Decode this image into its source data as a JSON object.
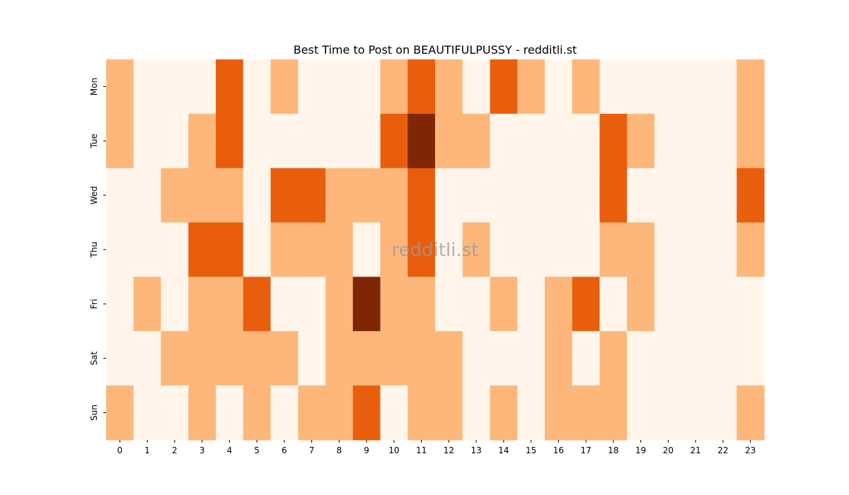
{
  "chart_data": {
    "type": "heatmap",
    "title": "Best Time to Post on BEAUTIFULPUSSY - redditli.st",
    "xlabel": "",
    "ylabel": "",
    "x_categories": [
      "0",
      "1",
      "2",
      "3",
      "4",
      "5",
      "6",
      "7",
      "8",
      "9",
      "10",
      "11",
      "12",
      "13",
      "14",
      "15",
      "16",
      "17",
      "18",
      "19",
      "20",
      "21",
      "22",
      "23"
    ],
    "y_categories": [
      "Mon",
      "Tue",
      "Wed",
      "Thu",
      "Fri",
      "Sat",
      "Sun"
    ],
    "values": [
      [
        1,
        0,
        0,
        0,
        2,
        0,
        1,
        0,
        0,
        0,
        1,
        2,
        1,
        0,
        2,
        1,
        0,
        1,
        0,
        0,
        0,
        0,
        0,
        1
      ],
      [
        1,
        0,
        0,
        1,
        2,
        0,
        0,
        0,
        0,
        0,
        2,
        3,
        1,
        1,
        0,
        0,
        0,
        0,
        2,
        1,
        0,
        0,
        0,
        1
      ],
      [
        0,
        0,
        1,
        1,
        1,
        0,
        2,
        2,
        1,
        1,
        1,
        2,
        0,
        0,
        0,
        0,
        0,
        0,
        2,
        0,
        0,
        0,
        0,
        2
      ],
      [
        0,
        0,
        0,
        2,
        2,
        0,
        1,
        1,
        1,
        0,
        1,
        2,
        0,
        1,
        0,
        0,
        0,
        0,
        1,
        1,
        0,
        0,
        0,
        1
      ],
      [
        0,
        1,
        0,
        1,
        1,
        2,
        0,
        0,
        1,
        3,
        1,
        1,
        0,
        0,
        1,
        0,
        1,
        2,
        0,
        1,
        0,
        0,
        0,
        0
      ],
      [
        0,
        0,
        1,
        1,
        1,
        1,
        1,
        0,
        1,
        1,
        1,
        1,
        1,
        0,
        0,
        0,
        1,
        0,
        1,
        0,
        0,
        0,
        0,
        0
      ],
      [
        1,
        0,
        0,
        1,
        0,
        1,
        0,
        1,
        1,
        2,
        0,
        1,
        1,
        0,
        1,
        0,
        1,
        1,
        1,
        0,
        0,
        0,
        0,
        1
      ]
    ],
    "color_scale": [
      "#fff5eb",
      "#fdb77a",
      "#e95e0d",
      "#7f2704"
    ],
    "grid": false,
    "legend": "none",
    "watermark": "redditli.st"
  }
}
